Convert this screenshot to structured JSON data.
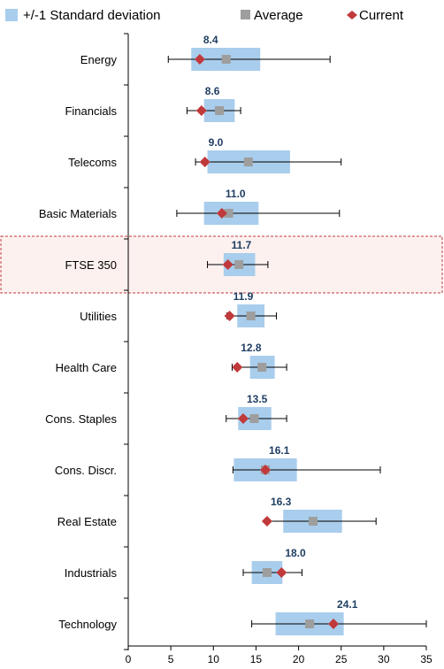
{
  "chart_data": {
    "type": "range-bar",
    "title": "",
    "xlabel": "",
    "ylabel": "",
    "xlim": [
      0,
      35
    ],
    "xticks": [
      0,
      5,
      10,
      15,
      20,
      25,
      30,
      35
    ],
    "grid": false,
    "legend_position": "top",
    "legend": {
      "band_label": "+/-1 Standard deviation",
      "avg_label": "Average",
      "cur_label": "Current"
    },
    "colors": {
      "band": "#a9cdec",
      "average": "#9e9e9e",
      "current": "#c0393b",
      "label": "#1f3e63",
      "highlight": "#c0393b",
      "highlight_fill": "#fdf1ef"
    },
    "highlight_category": "FTSE 350",
    "categories": [
      "Energy",
      "Financials",
      "Telecoms",
      "Basic Materials",
      "FTSE 350",
      "Utilities",
      "Health Care",
      "Cons. Staples",
      "Cons. Discr.",
      "Real Estate",
      "Industrials",
      "Technology"
    ],
    "min": [
      4.7,
      6.9,
      7.9,
      5.7,
      9.3,
      11.6,
      12.2,
      11.5,
      12.3,
      16.3,
      13.5,
      14.5
    ],
    "max": [
      23.7,
      13.2,
      25.0,
      24.8,
      16.4,
      17.4,
      18.6,
      18.6,
      29.6,
      29.1,
      20.4,
      35.0
    ],
    "band_low": [
      7.4,
      8.9,
      9.3,
      8.9,
      11.2,
      12.8,
      14.3,
      12.9,
      12.4,
      18.2,
      14.5,
      17.3
    ],
    "band_high": [
      15.5,
      12.5,
      19.0,
      15.3,
      14.9,
      16.0,
      17.2,
      16.8,
      19.8,
      25.1,
      18.1,
      25.3
    ],
    "average": [
      11.5,
      10.7,
      14.1,
      11.8,
      13.0,
      14.4,
      15.7,
      14.8,
      16.1,
      21.7,
      16.3,
      21.3
    ],
    "current": [
      8.4,
      8.6,
      9.0,
      11.0,
      11.7,
      11.9,
      12.8,
      13.5,
      16.1,
      16.3,
      18.0,
      24.1
    ],
    "current_labels": [
      "8.4",
      "8.6",
      "9.0",
      "11.0",
      "11.7",
      "11.9",
      "12.8",
      "13.5",
      "16.1",
      "16.3",
      "18.0",
      "24.1"
    ]
  }
}
